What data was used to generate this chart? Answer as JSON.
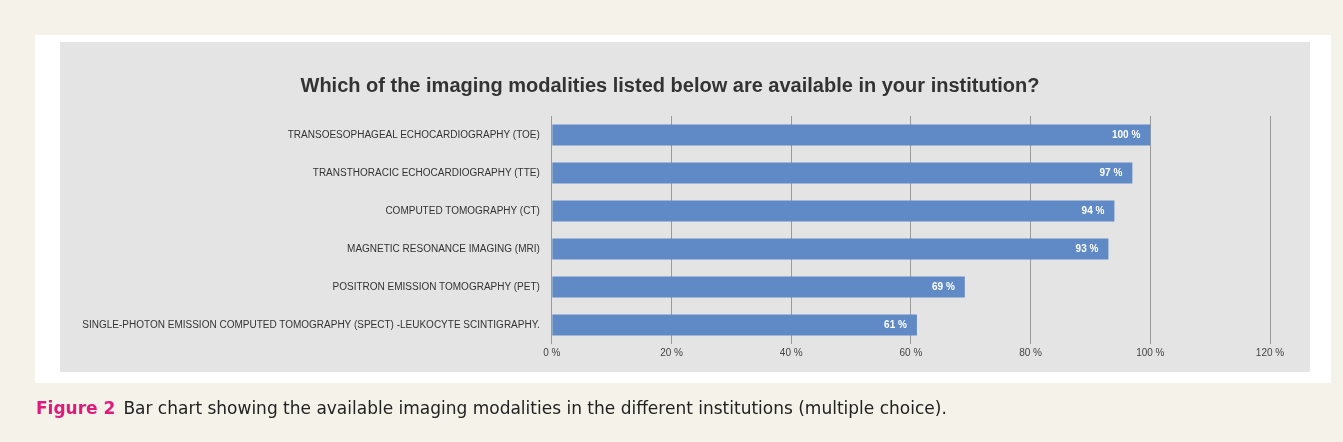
{
  "chart_data": {
    "type": "bar",
    "orientation": "horizontal",
    "title": "Which of the imaging modalities listed below are available in your institution?",
    "categories": [
      "TRANSOESOPHAGEAL ECHOCARDIOGRAPHY (TOE)",
      "TRANSTHORACIC ECHOCARDIOGRAPHY (TTE)",
      "COMPUTED TOMOGRAPHY (CT)",
      "MAGNETIC RESONANCE IMAGING (MRI)",
      "POSITRON EMISSION TOMOGRAPHY (PET)",
      "SINGLE-PHOTON EMISSION COMPUTED TOMOGRAPHY (SPECT) -LEUKOCYTE SCINTIGRAPHY."
    ],
    "values": [
      100,
      97,
      94,
      93,
      69,
      61
    ],
    "value_labels": [
      "100 %",
      "97 %",
      "94 %",
      "93 %",
      "69 %",
      "61 %"
    ],
    "color": "#5f8ac6",
    "xlim": [
      0,
      120
    ],
    "xticks": [
      {
        "value": 0,
        "label": "0 %"
      },
      {
        "value": 20,
        "label": "20 %"
      },
      {
        "value": 40,
        "label": "40 %"
      },
      {
        "value": 60,
        "label": "60 %"
      },
      {
        "value": 80,
        "label": "80 %"
      },
      {
        "value": 100,
        "label": "100 %"
      },
      {
        "value": 120,
        "label": "120 %"
      }
    ],
    "grid": "x",
    "annotations": [
      "Figure 2",
      "Bar chart showing the available imaging modalities in the different institutions (multiple choice)."
    ]
  }
}
